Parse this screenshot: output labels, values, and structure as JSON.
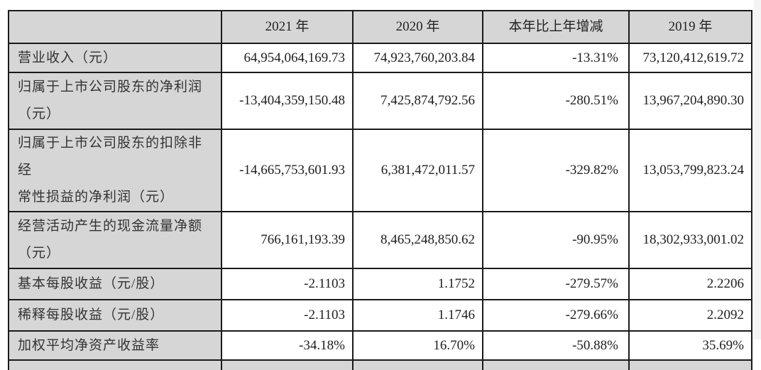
{
  "table": {
    "headers": [
      "",
      "2021 年",
      "2020 年",
      "本年比上年增减",
      "2019 年"
    ],
    "rows": [
      {
        "label": "营业收入（元）",
        "values": [
          "64,954,064,169.73",
          "74,923,760,203.84",
          "-13.31%",
          "73,120,412,619.72"
        ]
      },
      {
        "label_line1": "归属于上市公司股东的净利润",
        "label_line2": "（元）",
        "values": [
          "-13,404,359,150.48",
          "7,425,874,792.56",
          "-280.51%",
          "13,967,204,890.30"
        ]
      },
      {
        "label_line1": "归属于上市公司股东的扣除非经",
        "label_line2": "常性损益的净利润（元）",
        "values": [
          "-14,665,753,601.93",
          "6,381,472,011.57",
          "-329.82%",
          "13,053,799,823.24"
        ]
      },
      {
        "label_line1": "经营活动产生的现金流量净额",
        "label_line2": "（元）",
        "values": [
          "766,161,193.39",
          "8,465,248,850.62",
          "-90.95%",
          "18,302,933,001.02"
        ]
      },
      {
        "label": "基本每股收益（元/股）",
        "values": [
          "-2.1103",
          "1.1752",
          "-279.57%",
          "2.2206"
        ]
      },
      {
        "label": "稀释每股收益（元/股）",
        "values": [
          "-2.1103",
          "1.1746",
          "-279.66%",
          "2.2092"
        ]
      },
      {
        "label": "加权平均净资产收益率",
        "values": [
          "-34.18%",
          "16.70%",
          "-50.88%",
          "35.69%"
        ]
      }
    ]
  },
  "colors": {
    "header_bg": "#d6d6d6",
    "label_bg": "#d6d6d6",
    "cell_bg": "#ffffff",
    "border": "#1a1a1a",
    "text": "#222222"
  }
}
